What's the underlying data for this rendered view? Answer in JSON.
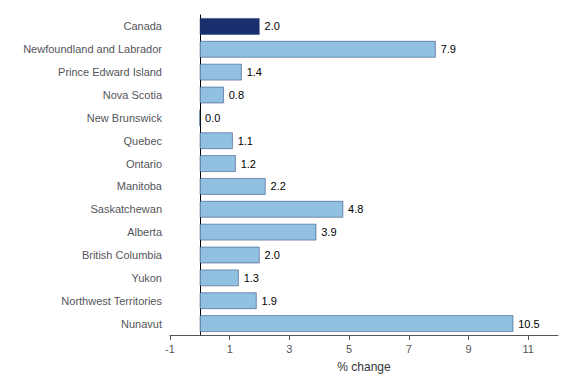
{
  "chart_data": {
    "type": "bar",
    "orientation": "horizontal",
    "categories": [
      "Canada",
      "Newfoundland and Labrador",
      "Prince Edward Island",
      "Nova Scotia",
      "New Brunswick",
      "Quebec",
      "Ontario",
      "Manitoba",
      "Saskatchewan",
      "Alberta",
      "British Columbia",
      "Yukon",
      "Northwest Territories",
      "Nunavut"
    ],
    "values": [
      2.0,
      7.9,
      1.4,
      0.8,
      0.0,
      1.1,
      1.2,
      2.2,
      4.8,
      3.9,
      2.0,
      1.3,
      1.9,
      10.5
    ],
    "value_labels": [
      "2.0",
      "7.9",
      "1.4",
      "0.8",
      "0.0",
      "1.1",
      "1.2",
      "2.2",
      "4.8",
      "3.9",
      "2.0",
      "1.3",
      "1.9",
      "10.5"
    ],
    "colors": [
      "#1a2f6e",
      "#92c0e0",
      "#92c0e0",
      "#92c0e0",
      "#92c0e0",
      "#92c0e0",
      "#92c0e0",
      "#92c0e0",
      "#92c0e0",
      "#92c0e0",
      "#92c0e0",
      "#92c0e0",
      "#92c0e0",
      "#92c0e0"
    ],
    "xlabel": "% change",
    "xlim": [
      -1,
      12
    ],
    "xticks": [
      -1,
      1,
      3,
      5,
      7,
      9,
      11
    ],
    "grid": false,
    "data_labels": true
  }
}
